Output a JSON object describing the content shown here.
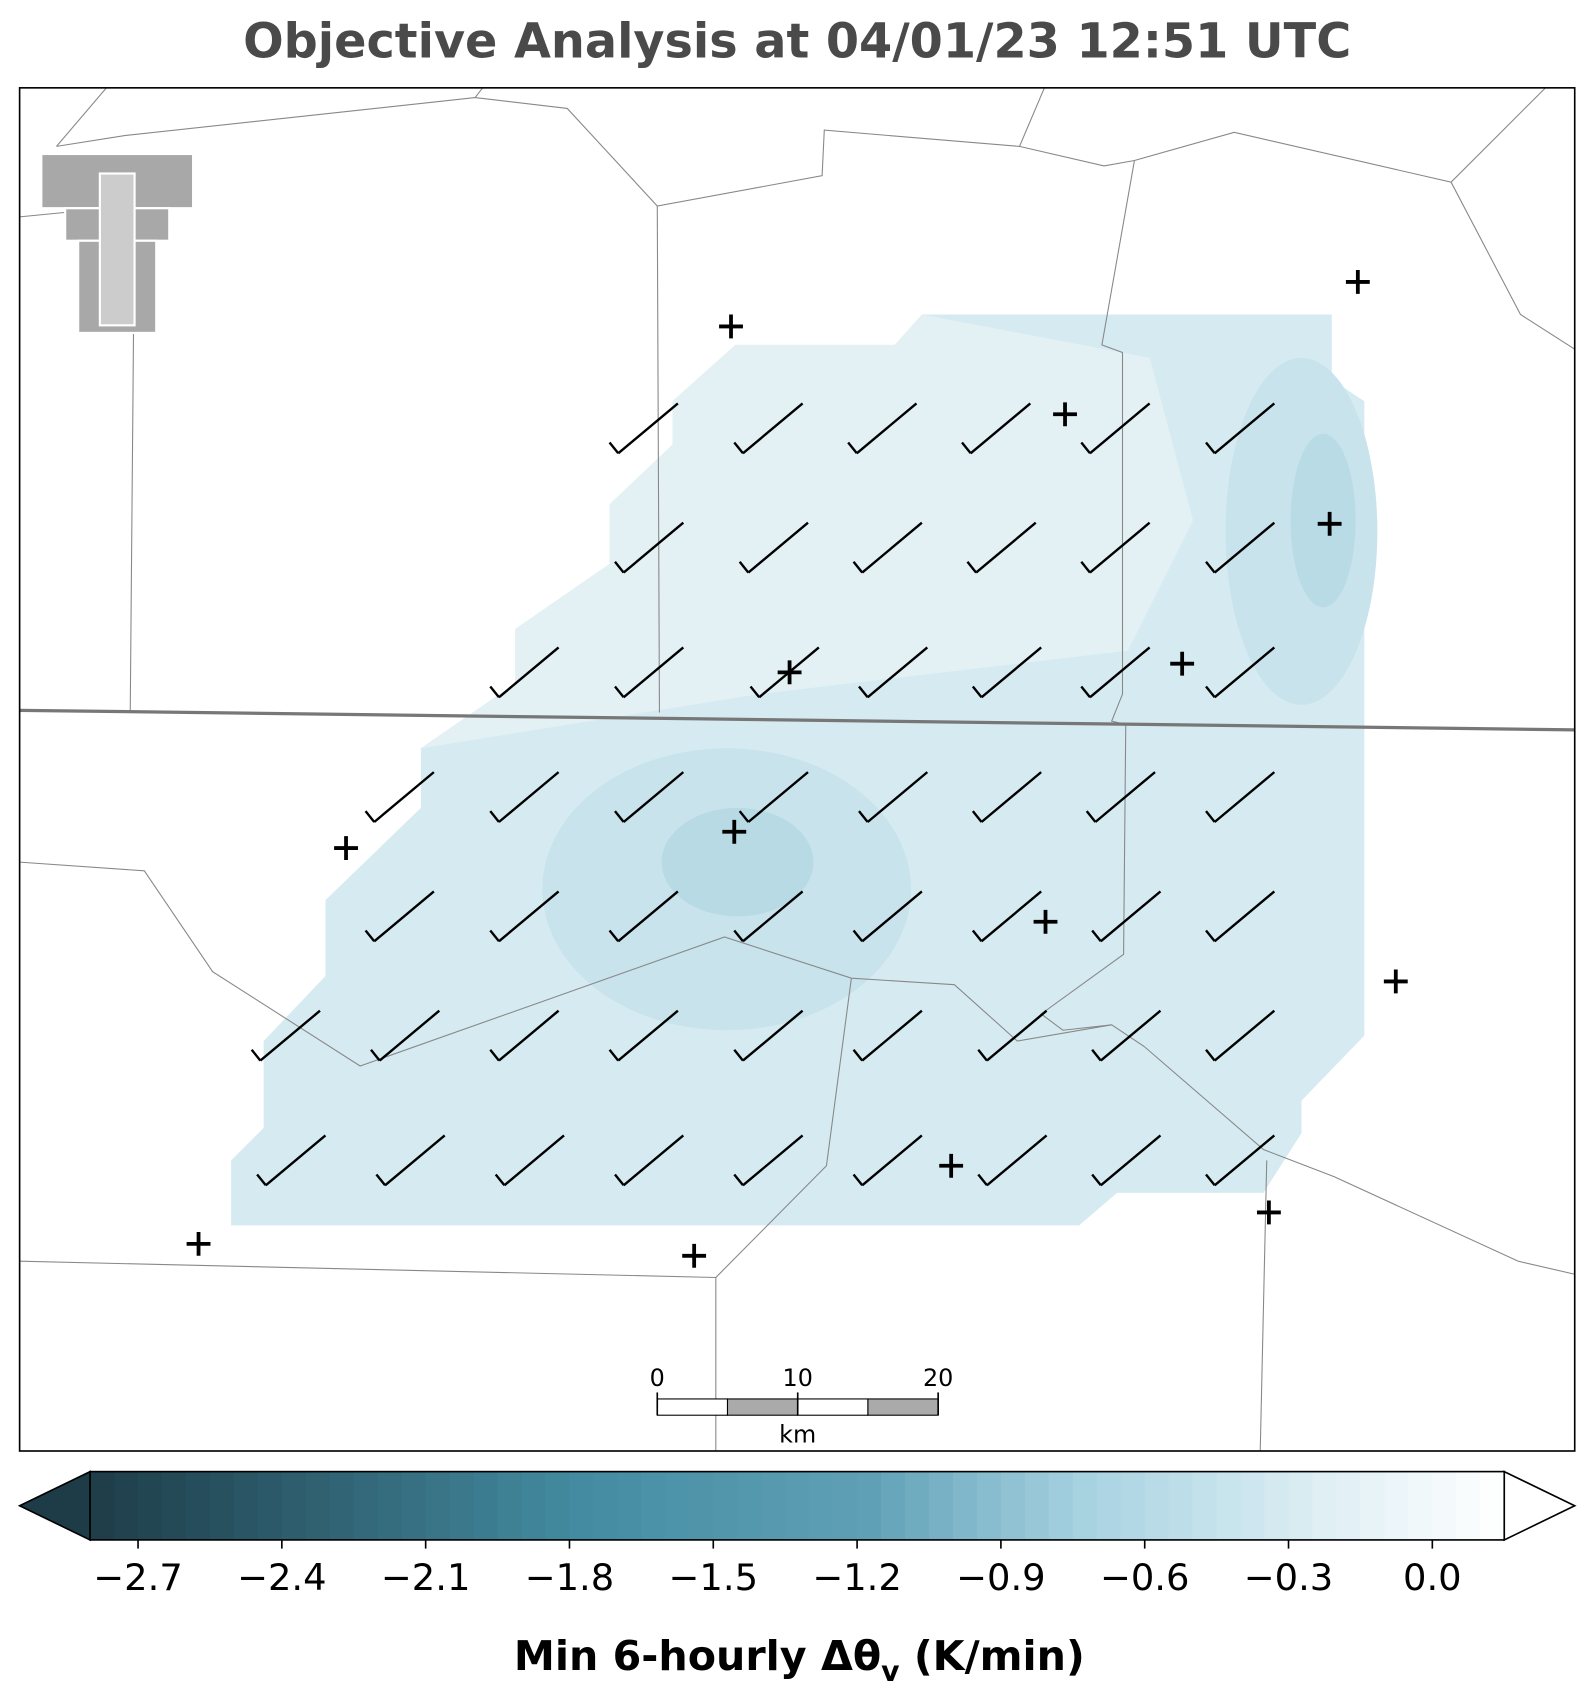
{
  "title": "Objective Analysis at 04/01/23 12:51 UTC",
  "colorbar": {
    "range": [
      -2.8,
      0.15
    ],
    "ticks": [
      {
        "value": -2.7,
        "label": "−2.7"
      },
      {
        "value": -2.4,
        "label": "−2.4"
      },
      {
        "value": -2.1,
        "label": "−2.1"
      },
      {
        "value": -1.8,
        "label": "−1.8"
      },
      {
        "value": -1.5,
        "label": "−1.5"
      },
      {
        "value": -1.2,
        "label": "−1.2"
      },
      {
        "value": -0.9,
        "label": "−0.9"
      },
      {
        "value": -0.6,
        "label": "−0.6"
      },
      {
        "value": -0.3,
        "label": "−0.3"
      },
      {
        "value": 0,
        "label": "0.0"
      }
    ],
    "label": "Min 6-hourly Δθ",
    "label_subscript": "v",
    "label_suffix": " (K/min)"
  },
  "scalebar": {
    "ticks": [
      0,
      10,
      20
    ],
    "unit": "km"
  }
}
